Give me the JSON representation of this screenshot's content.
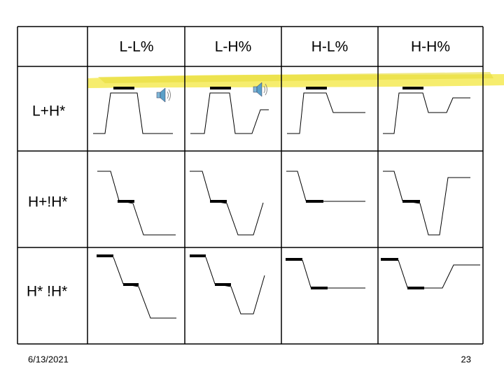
{
  "table": {
    "columns": [
      "L-L%",
      "L-H%",
      "H-L%",
      "H-H%"
    ],
    "rows": [
      "L+H*",
      "H+!H*",
      "H* !H*"
    ]
  },
  "footer": {
    "date": "6/13/2021",
    "page": "23"
  }
}
